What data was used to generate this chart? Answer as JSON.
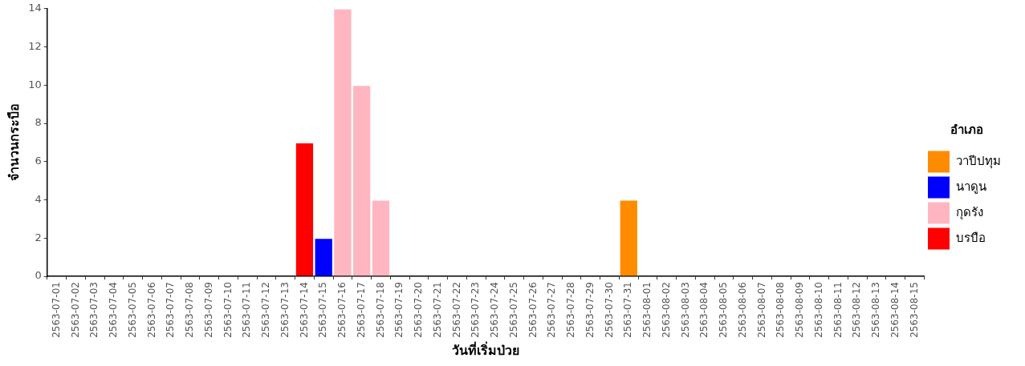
{
  "chart_data": {
    "type": "bar",
    "stacked": true,
    "xlabel": "วันที่เริ่มป่วย",
    "ylabel": "จำนวนกระบือ",
    "legend_title": "อำเภอ",
    "legend": "right",
    "grid": false,
    "categories": [
      "2563-07-01",
      "2563-07-02",
      "2563-07-03",
      "2563-07-04",
      "2563-07-05",
      "2563-07-06",
      "2563-07-07",
      "2563-07-08",
      "2563-07-09",
      "2563-07-10",
      "2563-07-11",
      "2563-07-12",
      "2563-07-13",
      "2563-07-14",
      "2563-07-15",
      "2563-07-16",
      "2563-07-17",
      "2563-07-18",
      "2563-07-19",
      "2563-07-20",
      "2563-07-21",
      "2563-07-22",
      "2563-07-23",
      "2563-07-24",
      "2563-07-25",
      "2563-07-26",
      "2563-07-27",
      "2563-07-28",
      "2563-07-29",
      "2563-07-30",
      "2563-07-31",
      "2563-08-01",
      "2563-08-02",
      "2563-08-03",
      "2563-08-04",
      "2563-08-05",
      "2563-08-06",
      "2563-08-07",
      "2563-08-08",
      "2563-08-09",
      "2563-08-10",
      "2563-08-11",
      "2563-08-12",
      "2563-08-13",
      "2563-08-14",
      "2563-08-15"
    ],
    "ylim": [
      0,
      14
    ],
    "yticks": [
      0,
      2,
      4,
      6,
      8,
      10,
      12,
      14
    ],
    "series": [
      {
        "name": "วาปีปทุม",
        "color": "#ff8c00",
        "values": [
          null,
          null,
          null,
          null,
          null,
          null,
          null,
          null,
          null,
          null,
          null,
          null,
          null,
          null,
          null,
          null,
          null,
          null,
          null,
          null,
          null,
          null,
          null,
          null,
          null,
          null,
          null,
          null,
          null,
          null,
          4,
          null,
          null,
          null,
          null,
          null,
          null,
          null,
          null,
          null,
          null,
          null,
          null,
          null,
          null,
          null
        ]
      },
      {
        "name": "นาดูน",
        "color": "#0000ff",
        "values": [
          null,
          null,
          null,
          null,
          null,
          null,
          null,
          null,
          null,
          null,
          null,
          null,
          null,
          null,
          2,
          null,
          null,
          null,
          null,
          null,
          null,
          null,
          null,
          null,
          null,
          null,
          null,
          null,
          null,
          null,
          null,
          null,
          null,
          null,
          null,
          null,
          null,
          null,
          null,
          null,
          null,
          null,
          null,
          null,
          null,
          null
        ]
      },
      {
        "name": "กุดรัง",
        "color": "#ffb6c1",
        "values": [
          null,
          null,
          null,
          null,
          null,
          null,
          null,
          null,
          null,
          null,
          null,
          null,
          null,
          null,
          null,
          14,
          10,
          4,
          null,
          null,
          null,
          null,
          null,
          null,
          null,
          null,
          null,
          null,
          null,
          null,
          null,
          null,
          null,
          null,
          null,
          null,
          null,
          null,
          null,
          null,
          null,
          null,
          null,
          null,
          null,
          null
        ]
      },
      {
        "name": "บรบือ",
        "color": "#ff0000",
        "values": [
          null,
          null,
          null,
          null,
          null,
          null,
          null,
          null,
          null,
          null,
          null,
          null,
          null,
          7,
          null,
          null,
          null,
          null,
          null,
          null,
          null,
          null,
          null,
          null,
          null,
          null,
          null,
          null,
          null,
          null,
          null,
          null,
          null,
          null,
          null,
          null,
          null,
          null,
          null,
          null,
          null,
          null,
          null,
          null,
          null,
          null
        ]
      }
    ]
  }
}
